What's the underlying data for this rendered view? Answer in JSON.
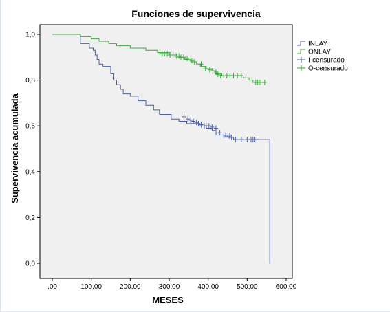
{
  "chart_data": {
    "type": "line",
    "title": "Funciones de supervivencia",
    "xlabel": "MESES",
    "ylabel": "Supervivencia acumulada",
    "xlim": [
      0,
      600
    ],
    "ylim": [
      0,
      1.0
    ],
    "x_ticks": [
      0,
      100,
      200,
      300,
      400,
      500,
      600
    ],
    "x_tick_labels": [
      ",00",
      "100,00",
      "200,00",
      "300,00",
      "400,00",
      "500,00",
      "600,00"
    ],
    "y_ticks": [
      0,
      0.2,
      0.4,
      0.6,
      0.8,
      1.0
    ],
    "y_tick_labels": [
      "0,0",
      "0,2",
      "0,4",
      "0,6",
      "0,8",
      "1,0"
    ],
    "grid": false,
    "legend_position": "right",
    "legend": [
      {
        "label": "INLAY",
        "kind": "line",
        "color": "#4a5fa6"
      },
      {
        "label": "ONLAY",
        "kind": "line",
        "color": "#3aaa3a"
      },
      {
        "label": "I-censurado",
        "kind": "censor",
        "color": "#4a5fa6"
      },
      {
        "label": "O-censurado",
        "kind": "censor",
        "color": "#3aaa3a"
      }
    ],
    "series": [
      {
        "name": "INLAY",
        "color": "#4a5fa6",
        "step": [
          [
            0,
            1.0
          ],
          [
            72,
            0.96
          ],
          [
            95,
            0.94
          ],
          [
            105,
            0.93
          ],
          [
            110,
            0.91
          ],
          [
            115,
            0.89
          ],
          [
            120,
            0.87
          ],
          [
            130,
            0.86
          ],
          [
            150,
            0.83
          ],
          [
            158,
            0.8
          ],
          [
            165,
            0.78
          ],
          [
            175,
            0.76
          ],
          [
            182,
            0.74
          ],
          [
            200,
            0.73
          ],
          [
            220,
            0.71
          ],
          [
            240,
            0.69
          ],
          [
            260,
            0.67
          ],
          [
            275,
            0.65
          ],
          [
            305,
            0.63
          ],
          [
            325,
            0.62
          ],
          [
            345,
            0.61
          ],
          [
            375,
            0.6
          ],
          [
            395,
            0.59
          ],
          [
            410,
            0.58
          ],
          [
            420,
            0.56
          ],
          [
            440,
            0.555
          ],
          [
            450,
            0.55
          ],
          [
            465,
            0.54
          ],
          [
            558,
            0.54
          ],
          [
            558,
            0.0
          ],
          [
            560,
            0.0
          ]
        ],
        "censored": [
          [
            338,
            0.64
          ],
          [
            348,
            0.63
          ],
          [
            355,
            0.625
          ],
          [
            362,
            0.62
          ],
          [
            370,
            0.615
          ],
          [
            375,
            0.61
          ],
          [
            382,
            0.605
          ],
          [
            390,
            0.6
          ],
          [
            395,
            0.6
          ],
          [
            402,
            0.6
          ],
          [
            410,
            0.595
          ],
          [
            420,
            0.59
          ],
          [
            430,
            0.57
          ],
          [
            440,
            0.56
          ],
          [
            445,
            0.56
          ],
          [
            455,
            0.555
          ],
          [
            460,
            0.55
          ],
          [
            470,
            0.54
          ],
          [
            485,
            0.54
          ],
          [
            500,
            0.54
          ],
          [
            510,
            0.54
          ],
          [
            515,
            0.54
          ],
          [
            520,
            0.54
          ],
          [
            525,
            0.54
          ]
        ]
      },
      {
        "name": "ONLAY",
        "color": "#3aaa3a",
        "step": [
          [
            0,
            1.0
          ],
          [
            72,
            0.99
          ],
          [
            100,
            0.98
          ],
          [
            120,
            0.97
          ],
          [
            145,
            0.96
          ],
          [
            165,
            0.95
          ],
          [
            200,
            0.94
          ],
          [
            240,
            0.93
          ],
          [
            270,
            0.92
          ],
          [
            300,
            0.91
          ],
          [
            320,
            0.9
          ],
          [
            340,
            0.89
          ],
          [
            355,
            0.88
          ],
          [
            370,
            0.87
          ],
          [
            380,
            0.86
          ],
          [
            395,
            0.85
          ],
          [
            410,
            0.84
          ],
          [
            418,
            0.83
          ],
          [
            435,
            0.82
          ],
          [
            490,
            0.81
          ],
          [
            505,
            0.8
          ],
          [
            515,
            0.79
          ],
          [
            545,
            0.79
          ]
        ],
        "censored": [
          [
            276,
            0.92
          ],
          [
            282,
            0.915
          ],
          [
            288,
            0.915
          ],
          [
            295,
            0.915
          ],
          [
            302,
            0.91
          ],
          [
            310,
            0.91
          ],
          [
            318,
            0.905
          ],
          [
            325,
            0.905
          ],
          [
            330,
            0.9
          ],
          [
            337,
            0.9
          ],
          [
            346,
            0.895
          ],
          [
            358,
            0.885
          ],
          [
            365,
            0.88
          ],
          [
            382,
            0.87
          ],
          [
            393,
            0.85
          ],
          [
            404,
            0.845
          ],
          [
            412,
            0.84
          ],
          [
            420,
            0.835
          ],
          [
            425,
            0.825
          ],
          [
            432,
            0.82
          ],
          [
            440,
            0.82
          ],
          [
            448,
            0.82
          ],
          [
            456,
            0.82
          ],
          [
            465,
            0.82
          ],
          [
            475,
            0.82
          ],
          [
            485,
            0.82
          ],
          [
            518,
            0.79
          ],
          [
            522,
            0.79
          ],
          [
            527,
            0.79
          ],
          [
            531,
            0.79
          ],
          [
            535,
            0.79
          ],
          [
            545,
            0.79
          ]
        ]
      }
    ]
  }
}
